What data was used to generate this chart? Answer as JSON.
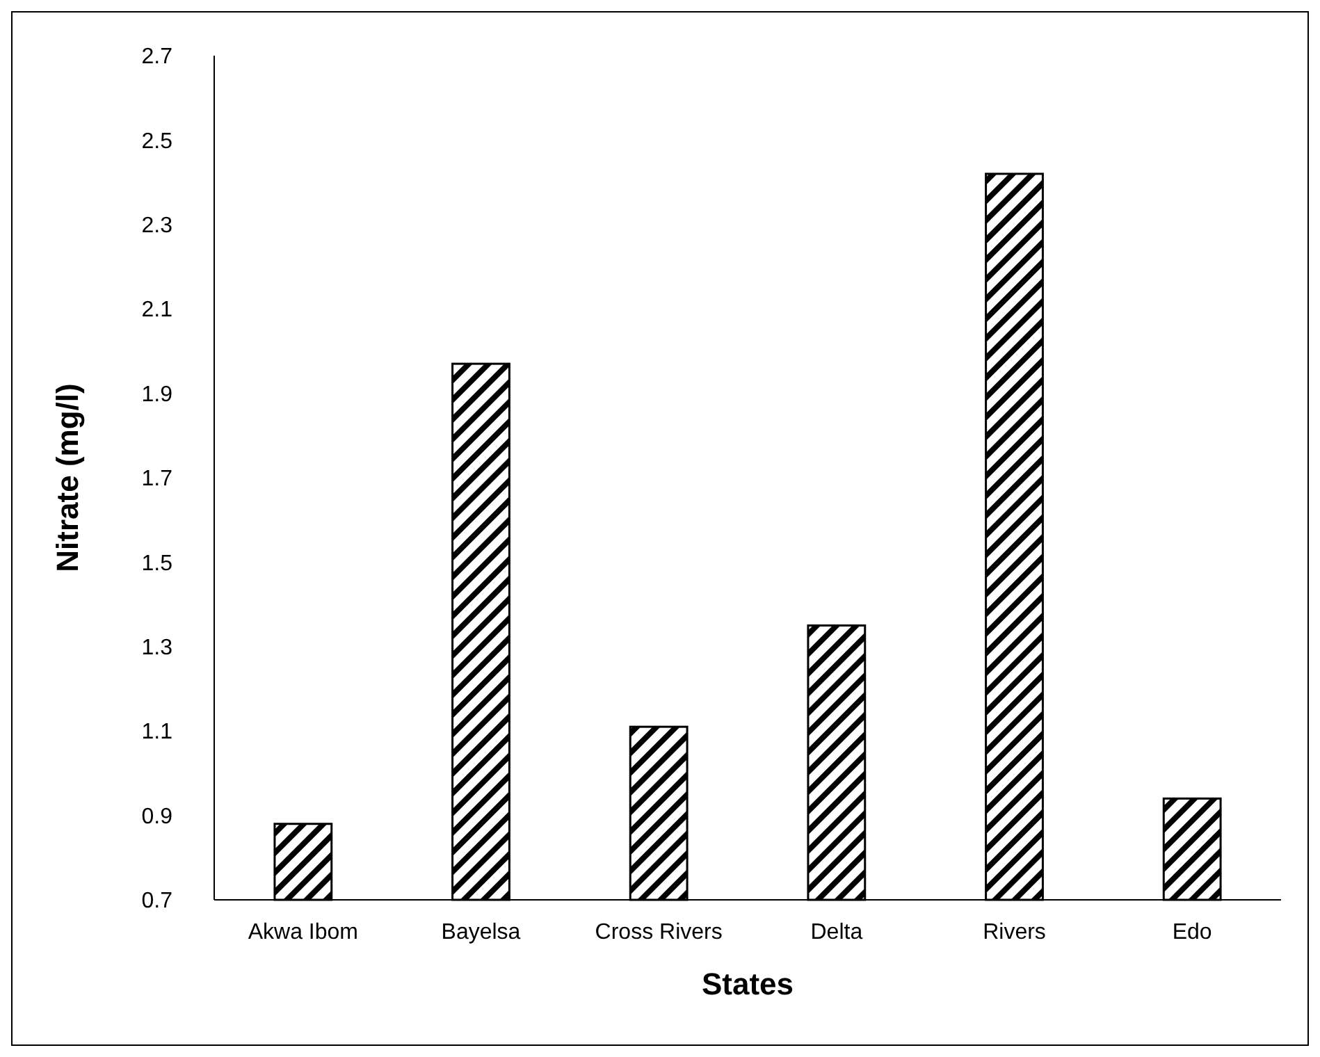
{
  "chart_data": {
    "type": "bar",
    "xlabel": "States",
    "ylabel": "Nitrate (mg/l)",
    "categories": [
      "Akwa Ibom",
      "Bayelsa",
      "Cross Rivers",
      "Delta",
      "Rivers",
      "Edo"
    ],
    "values": [
      0.88,
      1.97,
      1.11,
      1.35,
      2.42,
      0.94
    ],
    "color": "#000000",
    "ylim": [
      0.7,
      2.7
    ],
    "yticks": [
      {
        "value": 0.7,
        "label": "0.7"
      },
      {
        "value": 0.9,
        "label": "0.9"
      },
      {
        "value": 1.1,
        "label": "1.1"
      },
      {
        "value": 1.3,
        "label": "1.3"
      },
      {
        "value": 1.5,
        "label": "1.5"
      },
      {
        "value": 1.7,
        "label": "1.7"
      },
      {
        "value": 1.9,
        "label": "1.9"
      },
      {
        "value": 2.1,
        "label": "2.1"
      },
      {
        "value": 2.3,
        "label": "2.3"
      },
      {
        "value": 2.5,
        "label": "2.5"
      },
      {
        "value": 2.7,
        "label": "2.7"
      }
    ],
    "grid": false
  }
}
